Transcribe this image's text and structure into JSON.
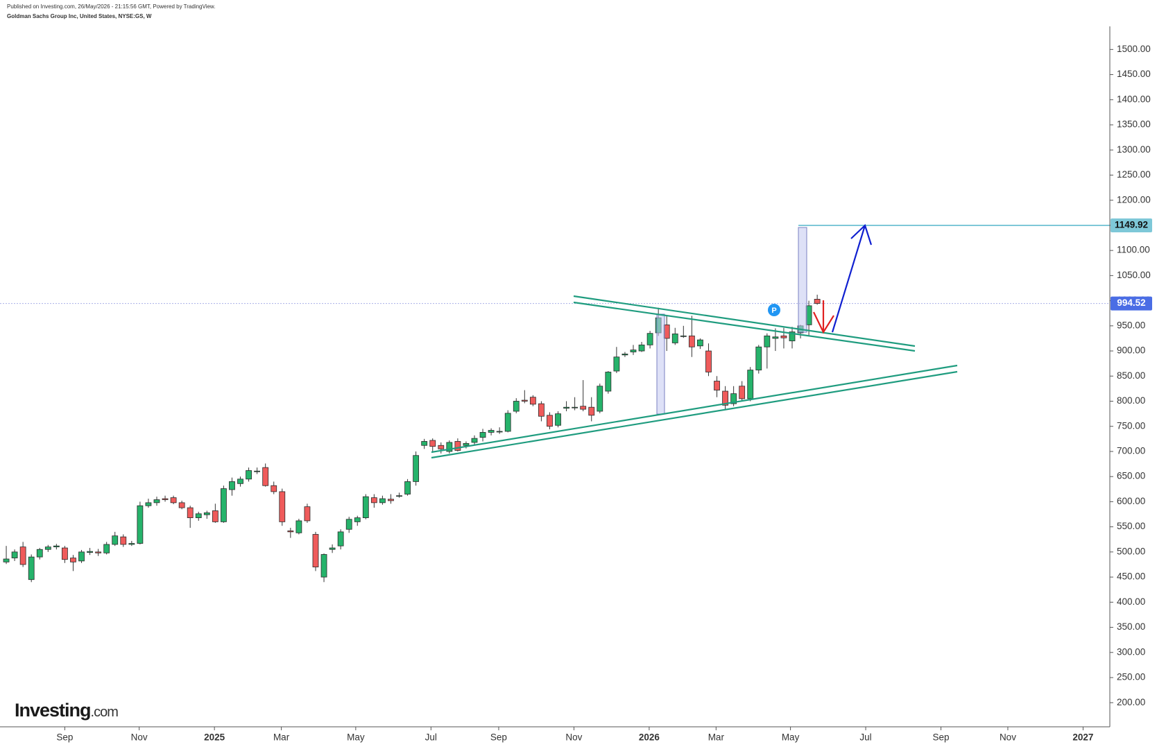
{
  "header": {
    "published": "Published on Investing.com, 26/May/2026 - 21:15:56 GMT, Powered by TradingView.",
    "instrument": "Goldman Sachs Group Inc, United States, NYSE:GS, W"
  },
  "logo": [
    "Investing",
    ".com"
  ],
  "badge": "P",
  "chart_data": {
    "type": "candlestick",
    "up_color": "#26b36b",
    "down_color": "#ef5b5b",
    "last_price": 994.52,
    "target_price": 1149.92,
    "ylim": [
      152,
      1546
    ],
    "yticks": [
      {
        "value": 200,
        "label": "200.00"
      },
      {
        "value": 250,
        "label": "250.00"
      },
      {
        "value": 300,
        "label": "300.00"
      },
      {
        "value": 350,
        "label": "350.00"
      },
      {
        "value": 400,
        "label": "400.00"
      },
      {
        "value": 450,
        "label": "450.00"
      },
      {
        "value": 500,
        "label": "500.00"
      },
      {
        "value": 550,
        "label": "550.00"
      },
      {
        "value": 600,
        "label": "600.00"
      },
      {
        "value": 650,
        "label": "650.00"
      },
      {
        "value": 700,
        "label": "700.00"
      },
      {
        "value": 750,
        "label": "750.00"
      },
      {
        "value": 800,
        "label": "800.00"
      },
      {
        "value": 850,
        "label": "850.00"
      },
      {
        "value": 900,
        "label": "900.00"
      },
      {
        "value": 950,
        "label": "950.00"
      },
      {
        "value": 1000,
        "label": "1000.00"
      },
      {
        "value": 1050,
        "label": "1050.00"
      },
      {
        "value": 1100,
        "label": "1100.00"
      },
      {
        "value": 1150,
        "label": "1150.00"
      },
      {
        "value": 1200,
        "label": "1200.00"
      },
      {
        "value": 1250,
        "label": "1250.00"
      },
      {
        "value": 1300,
        "label": "1300.00"
      },
      {
        "value": 1350,
        "label": "1350.00"
      },
      {
        "value": 1400,
        "label": "1400.00"
      },
      {
        "value": 1450,
        "label": "1450.00"
      },
      {
        "value": 1500,
        "label": "1500.00"
      }
    ],
    "xlim": [
      -0.75,
      132
    ],
    "xticks": [
      {
        "value": 7,
        "label": "Sep"
      },
      {
        "value": 15.9,
        "label": "Nov"
      },
      {
        "value": 24.9,
        "label": "2025"
      },
      {
        "value": 32.9,
        "label": "Mar"
      },
      {
        "value": 41.8,
        "label": "May"
      },
      {
        "value": 50.8,
        "label": "Jul"
      },
      {
        "value": 58.9,
        "label": "Sep"
      },
      {
        "value": 67.9,
        "label": "Nov"
      },
      {
        "value": 76.9,
        "label": "2026"
      },
      {
        "value": 84.9,
        "label": "Mar"
      },
      {
        "value": 93.8,
        "label": "May"
      },
      {
        "value": 102.8,
        "label": "Jul"
      },
      {
        "value": 111.8,
        "label": "Sep"
      },
      {
        "value": 119.8,
        "label": "Nov"
      },
      {
        "value": 128.8,
        "label": "2027"
      }
    ],
    "ohlc": [
      [
        480,
        512,
        476,
        486
      ],
      [
        488,
        505,
        482,
        500
      ],
      [
        510,
        520,
        470,
        475
      ],
      [
        445,
        495,
        440,
        490
      ],
      [
        490,
        508,
        485,
        505
      ],
      [
        505,
        514,
        500,
        510
      ],
      [
        510,
        516,
        505,
        512
      ],
      [
        508,
        512,
        478,
        485
      ],
      [
        488,
        494,
        462,
        480
      ],
      [
        482,
        504,
        478,
        500
      ],
      [
        499,
        508,
        494,
        501
      ],
      [
        500,
        506,
        492,
        498
      ],
      [
        498,
        520,
        495,
        515
      ],
      [
        515,
        540,
        512,
        532
      ],
      [
        530,
        535,
        510,
        515
      ],
      [
        515,
        522,
        512,
        517
      ],
      [
        517,
        600,
        515,
        592
      ],
      [
        592,
        606,
        588,
        598
      ],
      [
        598,
        610,
        592,
        604
      ],
      [
        606,
        612,
        600,
        604
      ],
      [
        608,
        612,
        595,
        598
      ],
      [
        598,
        602,
        585,
        588
      ],
      [
        588,
        592,
        548,
        568
      ],
      [
        568,
        580,
        562,
        576
      ],
      [
        574,
        582,
        566,
        578
      ],
      [
        582,
        596,
        558,
        560
      ],
      [
        560,
        632,
        558,
        626
      ],
      [
        624,
        648,
        612,
        640
      ],
      [
        636,
        650,
        630,
        645
      ],
      [
        645,
        668,
        640,
        662
      ],
      [
        660,
        668,
        655,
        661
      ],
      [
        668,
        676,
        630,
        632
      ],
      [
        632,
        640,
        615,
        620
      ],
      [
        620,
        626,
        552,
        560
      ],
      [
        542,
        548,
        528,
        540
      ],
      [
        538,
        566,
        535,
        562
      ],
      [
        590,
        596,
        558,
        562
      ],
      [
        535,
        540,
        462,
        470
      ],
      [
        450,
        497,
        440,
        495
      ],
      [
        505,
        515,
        498,
        508
      ],
      [
        512,
        545,
        505,
        540
      ],
      [
        545,
        570,
        538,
        565
      ],
      [
        560,
        572,
        552,
        568
      ],
      [
        568,
        615,
        565,
        610
      ],
      [
        608,
        615,
        588,
        598
      ],
      [
        598,
        612,
        594,
        606
      ],
      [
        605,
        615,
        596,
        602
      ],
      [
        612,
        618,
        608,
        612
      ],
      [
        615,
        645,
        612,
        640
      ],
      [
        640,
        700,
        632,
        692
      ],
      [
        712,
        725,
        705,
        720
      ],
      [
        722,
        726,
        700,
        710
      ],
      [
        712,
        718,
        696,
        705
      ],
      [
        700,
        722,
        696,
        718
      ],
      [
        720,
        726,
        700,
        702
      ],
      [
        712,
        720,
        706,
        716
      ],
      [
        718,
        732,
        712,
        726
      ],
      [
        728,
        745,
        720,
        738
      ],
      [
        738,
        746,
        732,
        742
      ],
      [
        740,
        748,
        735,
        740
      ],
      [
        740,
        782,
        738,
        776
      ],
      [
        780,
        806,
        776,
        800
      ],
      [
        802,
        822,
        796,
        800
      ],
      [
        808,
        812,
        790,
        794
      ],
      [
        795,
        800,
        760,
        770
      ],
      [
        772,
        778,
        744,
        750
      ],
      [
        752,
        780,
        748,
        775
      ],
      [
        786,
        800,
        780,
        788
      ],
      [
        788,
        808,
        782,
        788
      ],
      [
        790,
        842,
        780,
        784
      ],
      [
        788,
        808,
        760,
        772
      ],
      [
        780,
        835,
        776,
        830
      ],
      [
        820,
        860,
        815,
        858
      ],
      [
        860,
        908,
        856,
        888
      ],
      [
        892,
        898,
        888,
        894
      ],
      [
        898,
        912,
        892,
        902
      ],
      [
        900,
        918,
        898,
        912
      ],
      [
        912,
        940,
        905,
        935
      ],
      [
        936,
        986,
        930,
        966
      ],
      [
        952,
        970,
        900,
        925
      ],
      [
        916,
        946,
        912,
        934
      ],
      [
        930,
        950,
        926,
        930
      ],
      [
        930,
        970,
        888,
        908
      ],
      [
        910,
        925,
        904,
        922
      ],
      [
        900,
        915,
        850,
        858
      ],
      [
        840,
        850,
        808,
        822
      ],
      [
        820,
        830,
        782,
        792
      ],
      [
        795,
        830,
        790,
        815
      ],
      [
        830,
        840,
        800,
        805
      ],
      [
        805,
        868,
        800,
        862
      ],
      [
        862,
        912,
        855,
        908
      ],
      [
        908,
        935,
        865,
        930
      ],
      [
        925,
        945,
        900,
        928
      ],
      [
        930,
        946,
        905,
        926
      ],
      [
        920,
        948,
        905,
        938
      ],
      [
        936,
        952,
        925,
        950
      ],
      [
        952,
        1000,
        930,
        990
      ],
      [
        1003,
        1012,
        992,
        994.52
      ]
    ]
  }
}
